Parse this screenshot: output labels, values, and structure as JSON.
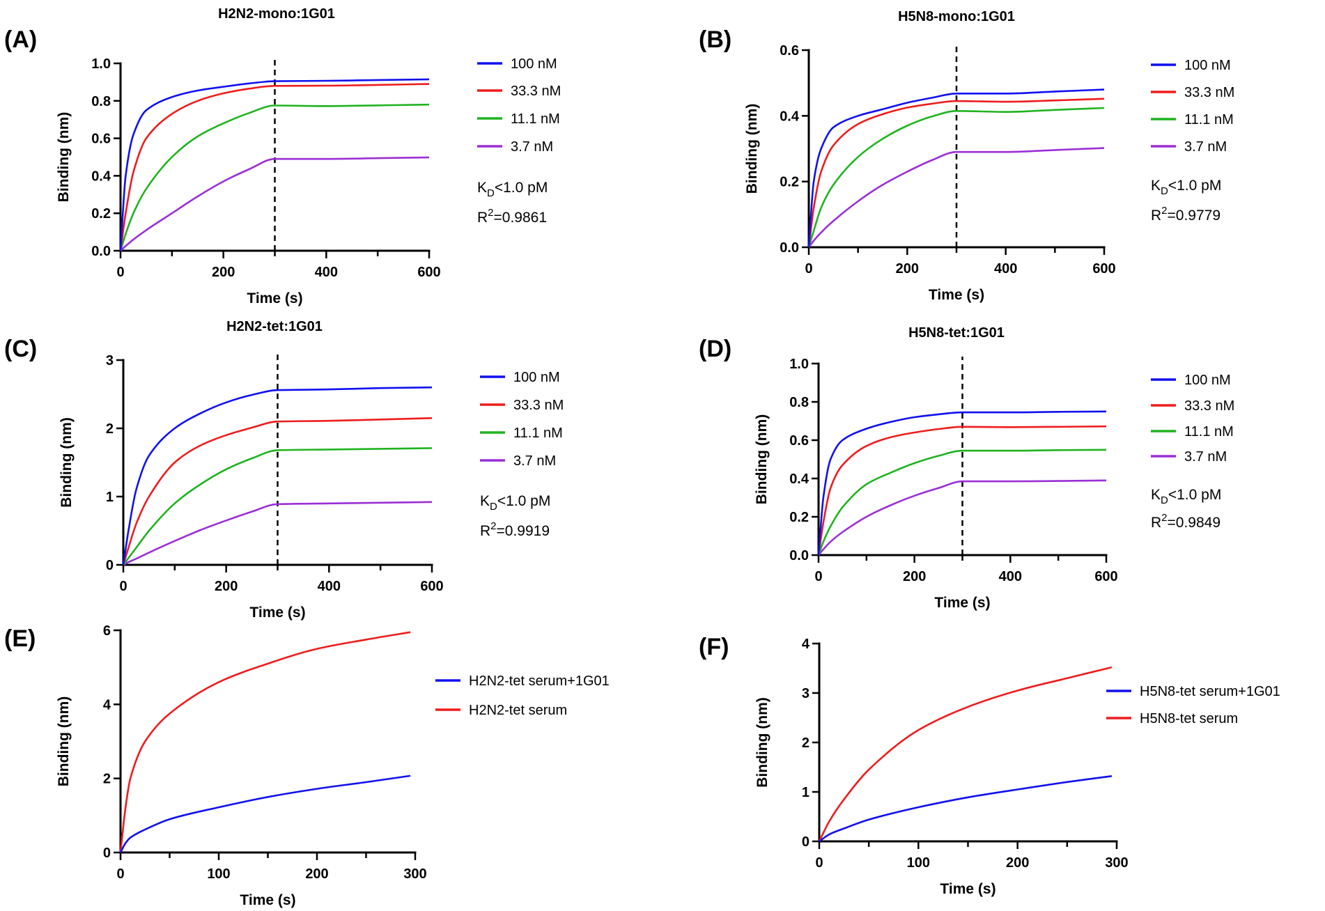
{
  "chart_data": [
    {
      "type": "line",
      "panel_label": "(A)",
      "title": "H2N2-mono:1G01",
      "xlabel": "Time (s)",
      "ylabel": "Binding (nm)",
      "xlim": [
        0,
        600
      ],
      "ylim": [
        0,
        1.0
      ],
      "xticks": [
        0,
        200,
        400,
        600
      ],
      "xtick_labels": [
        "0",
        "200",
        "400",
        "600"
      ],
      "xminor_step": 100,
      "yticks": [
        0,
        0.2,
        0.4,
        0.6,
        0.8,
        1.0
      ],
      "ytick_labels": [
        "0.0",
        "0.2",
        "0.4",
        "0.6",
        "0.8",
        "1.0"
      ],
      "vline_x": 300,
      "x": [
        0,
        10,
        25,
        50,
        100,
        150,
        200,
        250,
        300,
        400,
        500,
        600
      ],
      "series": [
        {
          "name": "100 nM",
          "color": "#1010f0",
          "values": [
            0,
            0.4,
            0.62,
            0.75,
            0.82,
            0.855,
            0.875,
            0.893,
            0.905,
            0.907,
            0.911,
            0.915
          ]
        },
        {
          "name": "33.3 nM",
          "color": "#ee1c1c",
          "values": [
            0,
            0.2,
            0.42,
            0.6,
            0.73,
            0.8,
            0.84,
            0.865,
            0.88,
            0.881,
            0.885,
            0.89
          ]
        },
        {
          "name": "11.1 nM",
          "color": "#1fb31f",
          "values": [
            0,
            0.09,
            0.2,
            0.33,
            0.5,
            0.61,
            0.68,
            0.735,
            0.775,
            0.772,
            0.776,
            0.78
          ]
        },
        {
          "name": "3.7 nM",
          "color": "#9b2fd6",
          "values": [
            0,
            0.025,
            0.06,
            0.11,
            0.2,
            0.29,
            0.37,
            0.435,
            0.49,
            0.49,
            0.494,
            0.498
          ]
        }
      ],
      "annotation": {
        "kd_main": "K",
        "kd_sub": "D",
        "kd_rest": "<1.0 pM",
        "r2_main": "R",
        "r2_sup": "2",
        "r2_rest": "=0.9861"
      }
    },
    {
      "type": "line",
      "panel_label": "(B)",
      "title": "H5N8-mono:1G01",
      "xlabel": "Time (s)",
      "ylabel": "Binding (nm)",
      "xlim": [
        0,
        600
      ],
      "ylim": [
        0,
        0.6
      ],
      "xticks": [
        0,
        200,
        400,
        600
      ],
      "xtick_labels": [
        "0",
        "200",
        "400",
        "600"
      ],
      "xminor_step": 100,
      "yticks": [
        0,
        0.2,
        0.4,
        0.6
      ],
      "ytick_labels": [
        "0.0",
        "0.2",
        "0.4",
        "0.6"
      ],
      "vline_x": 300,
      "x": [
        0,
        10,
        25,
        50,
        100,
        150,
        200,
        250,
        300,
        400,
        500,
        600
      ],
      "series": [
        {
          "name": "100 nM",
          "color": "#1010f0",
          "values": [
            0,
            0.2,
            0.3,
            0.365,
            0.4,
            0.42,
            0.44,
            0.455,
            0.468,
            0.468,
            0.474,
            0.48
          ]
        },
        {
          "name": "33.3 nM",
          "color": "#ee1c1c",
          "values": [
            0,
            0.12,
            0.23,
            0.31,
            0.375,
            0.405,
            0.425,
            0.437,
            0.445,
            0.443,
            0.447,
            0.452
          ]
        },
        {
          "name": "11.1 nM",
          "color": "#1fb31f",
          "values": [
            0,
            0.05,
            0.12,
            0.19,
            0.275,
            0.33,
            0.37,
            0.398,
            0.415,
            0.412,
            0.418,
            0.424
          ]
        },
        {
          "name": "3.7 nM",
          "color": "#9b2fd6",
          "values": [
            0,
            0.02,
            0.045,
            0.08,
            0.14,
            0.19,
            0.23,
            0.265,
            0.29,
            0.29,
            0.296,
            0.302
          ]
        }
      ],
      "annotation": {
        "kd_main": "K",
        "kd_sub": "D",
        "kd_rest": "<1.0 pM",
        "r2_main": "R",
        "r2_sup": "2",
        "r2_rest": "=0.9779"
      }
    },
    {
      "type": "line",
      "panel_label": "(C)",
      "title": "H2N2-tet:1G01",
      "xlabel": "Time (s)",
      "ylabel": "Binding (nm)",
      "xlim": [
        0,
        600
      ],
      "ylim": [
        0,
        3
      ],
      "xticks": [
        0,
        200,
        400,
        600
      ],
      "xtick_labels": [
        "0",
        "200",
        "400",
        "600"
      ],
      "xminor_step": 100,
      "yticks": [
        0,
        1,
        2,
        3
      ],
      "ytick_labels": [
        "0",
        "1",
        "2",
        "3"
      ],
      "vline_x": 300,
      "x": [
        0,
        10,
        25,
        50,
        100,
        150,
        200,
        250,
        300,
        400,
        500,
        600
      ],
      "series": [
        {
          "name": "100 nM",
          "color": "#1010f0",
          "values": [
            0,
            0.5,
            1.1,
            1.6,
            2.0,
            2.22,
            2.38,
            2.49,
            2.56,
            2.57,
            2.59,
            2.6
          ]
        },
        {
          "name": "33.3 nM",
          "color": "#ee1c1c",
          "values": [
            0,
            0.25,
            0.6,
            1.0,
            1.5,
            1.75,
            1.9,
            2.01,
            2.1,
            2.11,
            2.13,
            2.15
          ]
        },
        {
          "name": "11.1 nM",
          "color": "#1fb31f",
          "values": [
            0,
            0.1,
            0.25,
            0.5,
            0.9,
            1.18,
            1.4,
            1.56,
            1.68,
            1.69,
            1.7,
            1.71
          ]
        },
        {
          "name": "3.7 nM",
          "color": "#9b2fd6",
          "values": [
            0,
            0.04,
            0.09,
            0.18,
            0.35,
            0.51,
            0.65,
            0.78,
            0.89,
            0.9,
            0.91,
            0.92
          ]
        }
      ],
      "annotation": {
        "kd_main": "K",
        "kd_sub": "D",
        "kd_rest": "<1.0 pM",
        "r2_main": "R",
        "r2_sup": "2",
        "r2_rest": "=0.9919"
      }
    },
    {
      "type": "line",
      "panel_label": "(D)",
      "title": "H5N8-tet:1G01",
      "xlabel": "Time (s)",
      "ylabel": "Binding (nm)",
      "xlim": [
        0,
        600
      ],
      "ylim": [
        0,
        1.0
      ],
      "xticks": [
        0,
        200,
        400,
        600
      ],
      "xtick_labels": [
        "0",
        "200",
        "400",
        "600"
      ],
      "xminor_step": 100,
      "yticks": [
        0,
        0.2,
        0.4,
        0.6,
        0.8,
        1.0
      ],
      "ytick_labels": [
        "0.0",
        "0.2",
        "0.4",
        "0.6",
        "0.8",
        "1.0"
      ],
      "vline_x": 300,
      "x": [
        0,
        10,
        25,
        50,
        100,
        150,
        200,
        250,
        300,
        400,
        500,
        600
      ],
      "series": [
        {
          "name": "100 nM",
          "color": "#1010f0",
          "values": [
            0,
            0.3,
            0.5,
            0.6,
            0.66,
            0.695,
            0.72,
            0.735,
            0.745,
            0.745,
            0.748,
            0.75
          ]
        },
        {
          "name": "33.3 nM",
          "color": "#ee1c1c",
          "values": [
            0,
            0.17,
            0.35,
            0.47,
            0.57,
            0.615,
            0.64,
            0.658,
            0.67,
            0.668,
            0.67,
            0.672
          ]
        },
        {
          "name": "11.1 nM",
          "color": "#1fb31f",
          "values": [
            0,
            0.07,
            0.15,
            0.25,
            0.37,
            0.43,
            0.48,
            0.518,
            0.545,
            0.545,
            0.548,
            0.55
          ]
        },
        {
          "name": "3.7 nM",
          "color": "#9b2fd6",
          "values": [
            0,
            0.03,
            0.07,
            0.12,
            0.2,
            0.26,
            0.31,
            0.35,
            0.385,
            0.385,
            0.387,
            0.39
          ]
        }
      ],
      "annotation": {
        "kd_main": "K",
        "kd_sub": "D",
        "kd_rest": "<1.0 pM",
        "r2_main": "R",
        "r2_sup": "2",
        "r2_rest": "=0.9849"
      }
    },
    {
      "type": "line",
      "panel_label": "(E)",
      "title": "",
      "xlabel": "Time (s)",
      "ylabel": "Binding (nm)",
      "xlim": [
        0,
        300
      ],
      "ylim": [
        0,
        6
      ],
      "xticks": [
        0,
        100,
        200,
        300
      ],
      "xtick_labels": [
        "0",
        "100",
        "200",
        "300"
      ],
      "xminor_step": 50,
      "yticks": [
        0,
        2,
        4,
        6
      ],
      "ytick_labels": [
        "0",
        "2",
        "4",
        "6"
      ],
      "x": [
        0,
        5,
        10,
        25,
        50,
        100,
        150,
        200,
        250,
        295
      ],
      "series": [
        {
          "name": "H2N2-tet serum+1G01",
          "color": "#1010f0",
          "values": [
            0,
            0.25,
            0.4,
            0.62,
            0.9,
            1.22,
            1.5,
            1.72,
            1.9,
            2.07
          ]
        },
        {
          "name": "H2N2-tet serum",
          "color": "#ee1c1c",
          "values": [
            0,
            1.2,
            2.0,
            3.0,
            3.75,
            4.6,
            5.1,
            5.5,
            5.75,
            5.95
          ]
        }
      ]
    },
    {
      "type": "line",
      "panel_label": "(F)",
      "title": "",
      "xlabel": "Time (s)",
      "ylabel": "Binding (nm)",
      "xlim": [
        0,
        300
      ],
      "ylim": [
        0,
        4
      ],
      "xticks": [
        0,
        100,
        200,
        300
      ],
      "xtick_labels": [
        "0",
        "100",
        "200",
        "300"
      ],
      "xminor_step": 50,
      "yticks": [
        0,
        1,
        2,
        3,
        4
      ],
      "ytick_labels": [
        "0",
        "1",
        "2",
        "3",
        "4"
      ],
      "x": [
        0,
        10,
        25,
        50,
        100,
        150,
        200,
        250,
        295
      ],
      "series": [
        {
          "name": "H5N8-tet serum+1G01",
          "color": "#1010f0",
          "values": [
            0,
            0.14,
            0.26,
            0.44,
            0.69,
            0.89,
            1.05,
            1.2,
            1.32
          ]
        },
        {
          "name": "H5N8-tet serum",
          "color": "#ee1c1c",
          "values": [
            0,
            0.4,
            0.85,
            1.45,
            2.25,
            2.72,
            3.05,
            3.3,
            3.52
          ]
        }
      ]
    }
  ]
}
